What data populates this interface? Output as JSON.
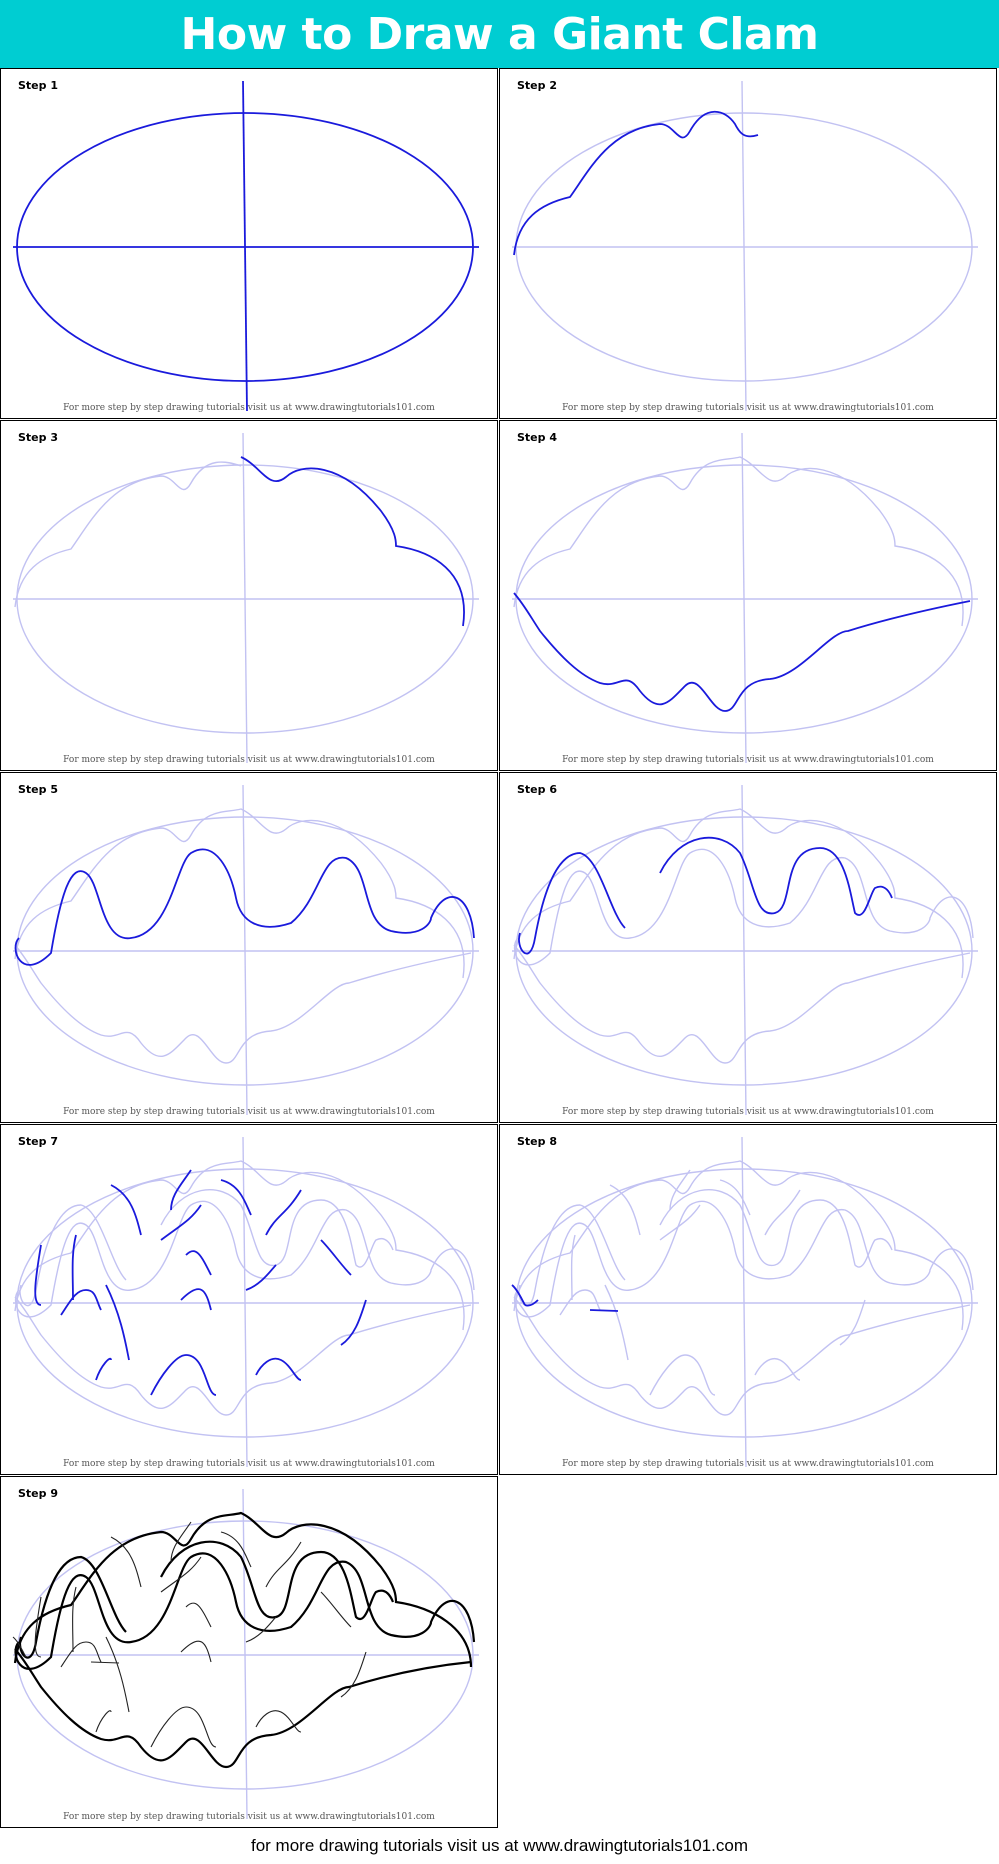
{
  "title": "How to Draw a Giant Clam",
  "footer": "for more drawing tutorials visit us at www.drawingtutorials101.com",
  "credit": "For more step by step drawing tutorials visit us at www.drawingtutorials101.com",
  "steps": [
    {
      "label": "Step 1"
    },
    {
      "label": "Step 2"
    },
    {
      "label": "Step 3"
    },
    {
      "label": "Step 4"
    },
    {
      "label": "Step 5"
    },
    {
      "label": "Step 6"
    },
    {
      "label": "Step 7"
    },
    {
      "label": "Step 8"
    },
    {
      "label": "Step 9"
    }
  ],
  "colors": {
    "header": "#00cdd2",
    "guide": "#c2c2f2",
    "stroke": "#1a1adc",
    "final": "#000000"
  }
}
